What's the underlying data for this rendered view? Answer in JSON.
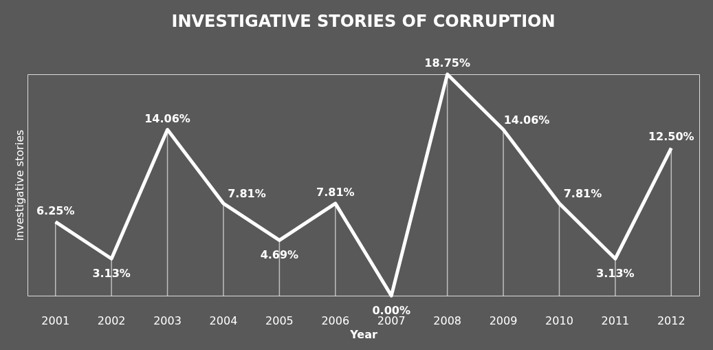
{
  "chart_data": {
    "type": "line",
    "title": "INVESTIGATIVE STORIES OF CORRUPTION",
    "xlabel": "Year",
    "ylabel": "investigative stories",
    "categories": [
      "2001",
      "2002",
      "2003",
      "2004",
      "2005",
      "2006",
      "2007",
      "2008",
      "2009",
      "2010",
      "2011",
      "2012"
    ],
    "series": [
      {
        "color": "#ffffff",
        "values": [
          6.25,
          3.13,
          14.06,
          7.81,
          4.69,
          7.81,
          0.0,
          18.75,
          14.06,
          7.81,
          3.13,
          12.5
        ],
        "value_labels": [
          "6.25%",
          "3.13%",
          "14.06%",
          "7.81%",
          "4.69%",
          "7.81%",
          "0.00%",
          "18.75%",
          "14.06%",
          "7.81%",
          "3.13%",
          "12.50%"
        ]
      }
    ],
    "grid": "x",
    "legend": false,
    "marker": "none",
    "line_style": "solid"
  }
}
